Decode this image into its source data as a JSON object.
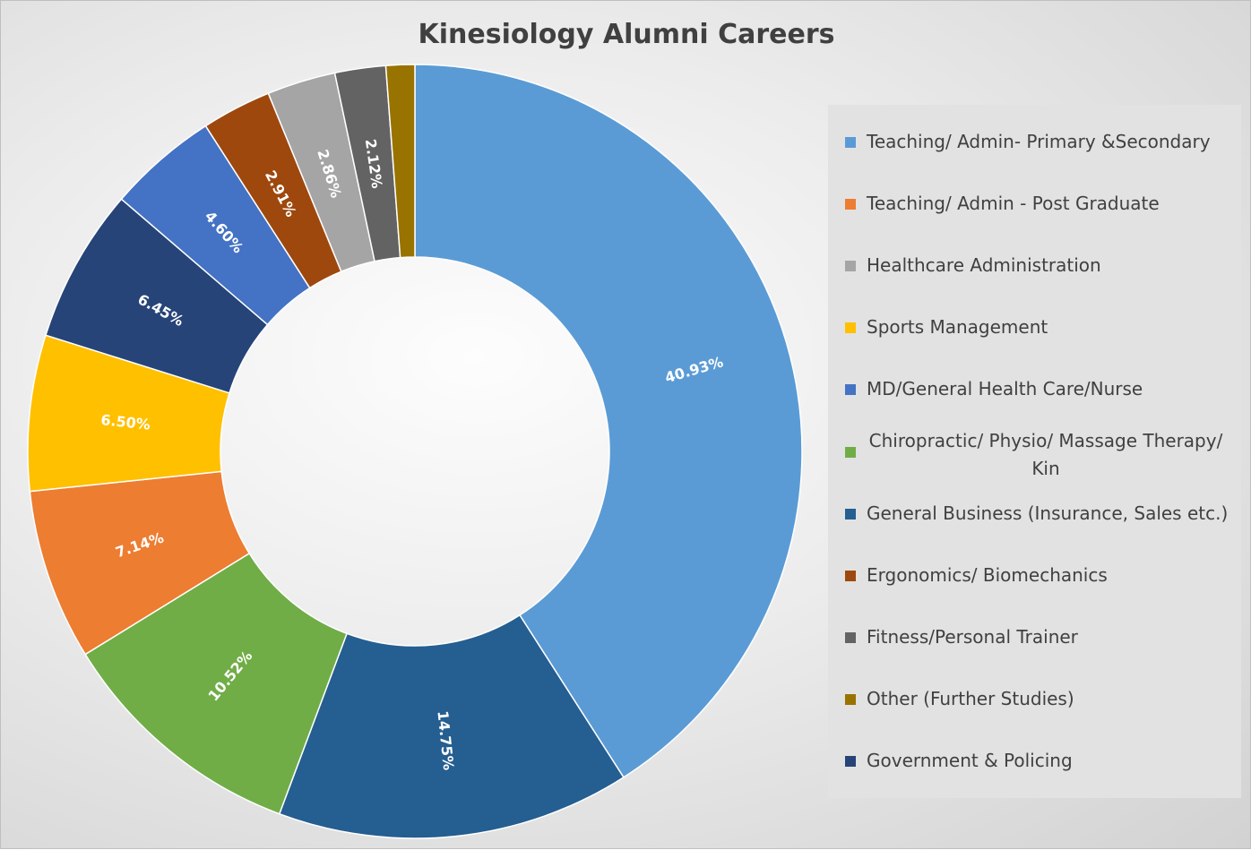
{
  "chart_data": {
    "type": "pie",
    "title": "Kinesiology Alumni Careers",
    "legend_position": "right",
    "slices": [
      {
        "label": "Teaching/ Admin- Primary &Secondary",
        "value": 40.93,
        "value_label": "40.93%",
        "color": "#5b9bd5"
      },
      {
        "label": "General Business (Insurance, Sales etc.)",
        "value": 14.75,
        "value_label": "14.75%",
        "color": "#255e91"
      },
      {
        "label": "Chiropractic/ Physio/ Massage Therapy/ Kin",
        "value": 10.52,
        "value_label": "10.52%",
        "color": "#70ad47"
      },
      {
        "label": "Teaching/ Admin - Post Graduate",
        "value": 7.14,
        "value_label": "7.14%",
        "color": "#ed7d31"
      },
      {
        "label": "Sports Management",
        "value": 6.5,
        "value_label": "6.50%",
        "color": "#ffc000"
      },
      {
        "label": "Government & Policing",
        "value": 6.45,
        "value_label": "6.45%",
        "color": "#264478"
      },
      {
        "label": "MD/General Health Care/Nurse",
        "value": 4.6,
        "value_label": "4.60%",
        "color": "#4472c4"
      },
      {
        "label": "Ergonomics/ Biomechanics",
        "value": 2.91,
        "value_label": "2.91%",
        "color": "#9e480e"
      },
      {
        "label": "Healthcare Administration",
        "value": 2.86,
        "value_label": "2.86%",
        "color": "#a5a5a5"
      },
      {
        "label": "Fitness/Personal Trainer",
        "value": 2.12,
        "value_label": "2.12%",
        "color": "#636363"
      },
      {
        "label": "Other (Further Studies)",
        "value": 1.2,
        "value_label": "",
        "color": "#997300"
      }
    ],
    "legend": [
      {
        "label": "Teaching/ Admin- Primary &Secondary",
        "color": "#5b9bd5"
      },
      {
        "label": "Teaching/ Admin - Post Graduate",
        "color": "#ed7d31"
      },
      {
        "label": "Healthcare Administration",
        "color": "#a5a5a5"
      },
      {
        "label": "Sports Management",
        "color": "#ffc000"
      },
      {
        "label": "MD/General Health Care/Nurse",
        "color": "#4472c4"
      },
      {
        "label": "Chiropractic/ Physio/ Massage Therapy/ Kin",
        "color": "#70ad47"
      },
      {
        "label": "General Business (Insurance, Sales etc.)",
        "color": "#255e91"
      },
      {
        "label": "Ergonomics/ Biomechanics",
        "color": "#9e480e"
      },
      {
        "label": "Fitness/Personal Trainer",
        "color": "#636363"
      },
      {
        "label": "Other (Further Studies)",
        "color": "#997300"
      },
      {
        "label": "Government & Policing",
        "color": "#264478"
      }
    ]
  }
}
